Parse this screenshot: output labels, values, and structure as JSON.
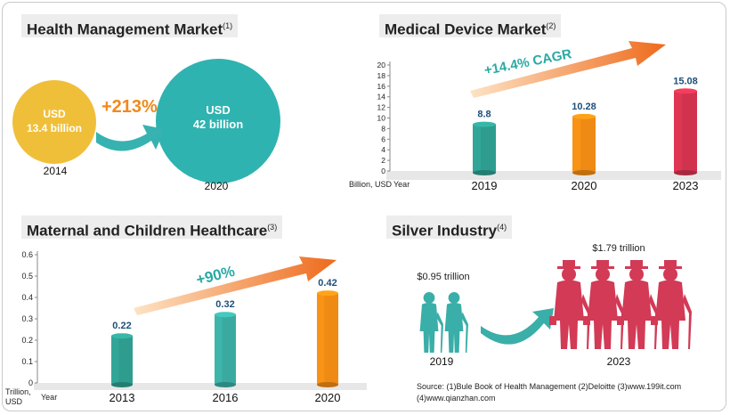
{
  "health": {
    "title": "Health Management Market",
    "note": "(1)",
    "growth": "+213%",
    "left": {
      "unit": "USD",
      "value": "13.4 billion",
      "year": "2014"
    },
    "right": {
      "unit": "USD",
      "value": "42 billion",
      "year": "2020"
    },
    "colors": {
      "small": "#f0bf3a",
      "large": "#2fb3b0",
      "arrow": "#36b2b1",
      "growth": "#f08a1c"
    }
  },
  "medical": {
    "title": "Medical Device Market",
    "note": "(2)",
    "cagr": "+14.4% CAGR",
    "unit": "Billion, USD",
    "year_label": "Year"
  },
  "maternal": {
    "title": "Maternal and Children Healthcare",
    "note": "(3)",
    "growth": "+90%",
    "unit_line1": "Trillion,",
    "unit_line2": "USD",
    "year_label": "Year"
  },
  "silver": {
    "title": "Silver Industry",
    "note": "(4)",
    "left": {
      "value": "$0.95 trillion",
      "year": "2019"
    },
    "right": {
      "value": "$1.79 trillion",
      "year": "2023"
    },
    "colors": {
      "left": "#3aaea8",
      "right": "#d23a56"
    }
  },
  "source": {
    "line1": "Source: (1)Bule Book of Health Management  (2)Deloitte  (3)www.199it.com",
    "line2": "(4)www.qianzhan.com"
  },
  "chart_data": [
    {
      "type": "bar",
      "title": "Medical Device Market",
      "categories": [
        "2019",
        "2020",
        "2023"
      ],
      "values": [
        8.8,
        10.28,
        15.08
      ],
      "value_labels": [
        "8.8",
        "10.28",
        "15.08"
      ],
      "colors": [
        "#2e9c8f",
        "#ef8a14",
        "#d1334f"
      ],
      "ylabel": "Billion, USD",
      "xlabel": "Year",
      "ylim": [
        0,
        20
      ],
      "yticks": [
        0,
        2,
        4,
        6,
        8,
        10,
        12,
        14,
        16,
        18,
        20
      ],
      "ytick_labels": [
        "0",
        "2",
        "4",
        "6",
        "8",
        "10",
        "12",
        "14",
        "16",
        "18",
        "20"
      ]
    },
    {
      "type": "bar",
      "title": "Maternal and Children Healthcare",
      "categories": [
        "2013",
        "2016",
        "2020"
      ],
      "values": [
        0.22,
        0.32,
        0.42
      ],
      "value_labels": [
        "0.22",
        "0.32",
        "0.42"
      ],
      "colors": [
        "#2e9c8f",
        "#3aaaa1",
        "#ef8a14"
      ],
      "ylabel": "Trillion, USD",
      "xlabel": "Year",
      "ylim": [
        0,
        0.6
      ],
      "yticks": [
        0,
        0.1,
        0.2,
        0.3,
        0.4,
        0.5,
        0.6
      ],
      "ytick_labels": [
        "0",
        "0.1",
        "0.2",
        "0.3",
        "0.4",
        "0.5",
        "0.6"
      ]
    }
  ]
}
